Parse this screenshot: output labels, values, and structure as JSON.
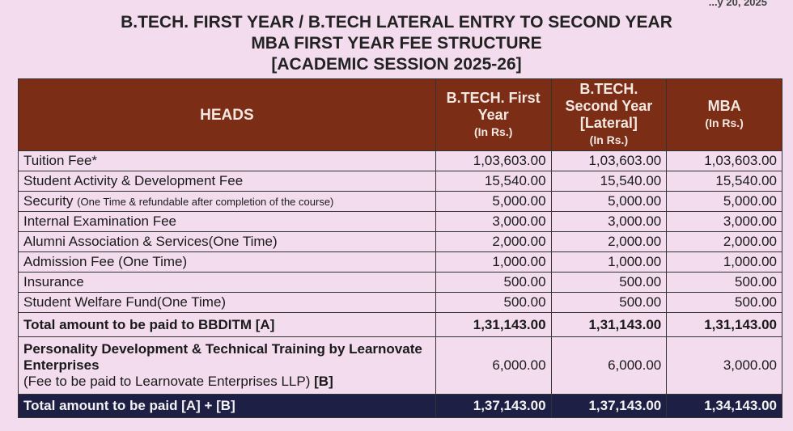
{
  "corner_text": "...y 20, 2025",
  "title": {
    "line1": "B.TECH. FIRST YEAR / B.TECH LATERAL ENTRY TO SECOND YEAR",
    "line2": "MBA FIRST YEAR FEE STRUCTURE",
    "line3": "[ACADEMIC SESSION 2025-26]"
  },
  "table": {
    "headers": [
      {
        "label": "HEADS",
        "sub": ""
      },
      {
        "label": "B.TECH. First Year",
        "sub": "(In Rs.)"
      },
      {
        "label": "B.TECH. Second Year [Lateral]",
        "sub": "(In Rs.)"
      },
      {
        "label": "MBA",
        "sub": "(In Rs.)"
      }
    ],
    "rows": [
      {
        "head": "Tuition Fee*",
        "note": "",
        "values": [
          "1,03,603.00",
          "1,03,603.00",
          "1,03,603.00"
        ]
      },
      {
        "head": "Student Activity & Development Fee",
        "note": "",
        "values": [
          "15,540.00",
          "15,540.00",
          "15,540.00"
        ]
      },
      {
        "head": "Security",
        "note": "(One Time & refundable after completion of the course)",
        "values": [
          "5,000.00",
          "5,000.00",
          "5,000.00"
        ]
      },
      {
        "head": "Internal Examination Fee",
        "note": "",
        "values": [
          "3,000.00",
          "3,000.00",
          "3,000.00"
        ]
      },
      {
        "head": "Alumni Association & Services(One Time)",
        "note": "",
        "values": [
          "2,000.00",
          "2,000.00",
          "2,000.00"
        ]
      },
      {
        "head": "Admission Fee (One Time)",
        "note": "",
        "values": [
          "1,000.00",
          "1,000.00",
          "1,000.00"
        ]
      },
      {
        "head": "Insurance",
        "note": "",
        "values": [
          "500.00",
          "500.00",
          "500.00"
        ]
      },
      {
        "head": "Student Welfare Fund(One Time)",
        "note": "",
        "values": [
          "500.00",
          "500.00",
          "500.00"
        ]
      }
    ],
    "total_a": {
      "head": "Total amount to be paid to BBDITM [A]",
      "values": [
        "1,31,143.00",
        "1,31,143.00",
        "1,31,143.00"
      ]
    },
    "training": {
      "head": "Personality Development & Technical Training by Learnovate Enterprises",
      "note": "(Fee to be paid to Learnovate Enterprises LLP)",
      "tag": "[B]",
      "values": [
        "6,000.00",
        "6,000.00",
        "3,000.00"
      ]
    },
    "grand_total": {
      "head": "Total amount to be paid [A] + [B]",
      "values": [
        "1,37,143.00",
        "1,37,143.00",
        "1,34,143.00"
      ]
    }
  },
  "colors": {
    "header_bg": "#7b2d16",
    "grand_total_bg": "#1e1f44",
    "page_bg": "#f2dcee"
  }
}
